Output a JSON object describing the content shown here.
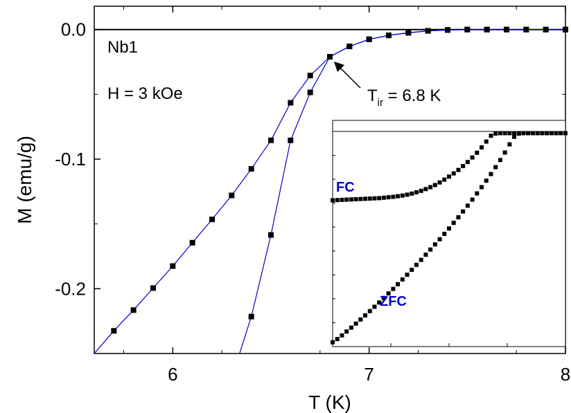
{
  "chart_data": {
    "type": "scatter",
    "title": "",
    "xlabel": "T (K)",
    "ylabel": "M (emu/g)",
    "xlim": [
      5.6,
      8.0
    ],
    "ylim": [
      -0.25,
      0.018
    ],
    "xticks": [
      {
        "value": 6,
        "label": "6"
      },
      {
        "value": 7,
        "label": "7"
      },
      {
        "value": 8,
        "label": "8"
      }
    ],
    "yticks": [
      {
        "value": 0.0,
        "label": "0.0"
      },
      {
        "value": -0.1,
        "label": "-0.1"
      },
      {
        "value": -0.2,
        "label": "-0.2"
      }
    ],
    "grid": false,
    "annotations": {
      "sample": "Nb1",
      "field": "H = 3 kOe",
      "tir_main": "T",
      "tir_sub": "ir",
      "tir_value": " = 6.8 K",
      "arrow_to": {
        "x": 6.8,
        "y": -0.021
      }
    },
    "series": [
      {
        "key": "fc",
        "color": "#0000cc",
        "x": [
          5.6,
          5.7,
          5.8,
          5.9,
          6.0,
          6.1,
          6.2,
          6.3,
          6.4,
          6.5,
          6.6,
          6.7,
          6.8,
          6.9,
          7.0,
          7.1,
          7.2,
          7.3,
          7.4,
          7.5,
          7.6,
          7.7,
          7.8,
          7.9,
          8.0
        ],
        "values": [
          -0.25,
          -0.2325,
          -0.2165,
          -0.1995,
          -0.1825,
          -0.1645,
          -0.1465,
          -0.128,
          -0.1075,
          -0.0855,
          -0.0565,
          -0.0355,
          -0.021,
          -0.013,
          -0.0075,
          -0.0045,
          -0.0025,
          -0.001,
          -0.0003,
          0.0,
          0.0,
          0.0,
          0.0,
          0.0,
          0.0
        ]
      },
      {
        "key": "zfc",
        "color": "#0000cc",
        "x": [
          6.34,
          6.4,
          6.5,
          6.6,
          6.7,
          6.8,
          6.9,
          7.0,
          7.1,
          7.2,
          7.3,
          7.4,
          7.5,
          7.6,
          7.7,
          7.8,
          7.9,
          8.0
        ],
        "values": [
          -0.25,
          -0.2215,
          -0.1585,
          -0.0855,
          -0.0485,
          -0.021,
          -0.013,
          -0.0075,
          -0.0045,
          -0.0025,
          -0.001,
          -0.0003,
          0.0,
          0.0,
          0.0,
          0.0,
          0.0,
          0.0
        ]
      }
    ],
    "inset": {
      "labels": {
        "fc": "FC",
        "zfc": "ZFC"
      },
      "label_color": "#0000cc",
      "x": [
        0.0,
        0.02,
        0.04,
        0.06,
        0.08,
        0.1,
        0.12,
        0.14,
        0.16,
        0.18,
        0.2,
        0.22,
        0.24,
        0.26,
        0.28,
        0.3,
        0.32,
        0.34,
        0.36,
        0.38,
        0.4,
        0.42,
        0.44,
        0.46,
        0.48,
        0.5,
        0.52,
        0.54,
        0.56,
        0.58,
        0.6,
        0.62,
        0.64,
        0.66,
        0.68,
        0.7,
        0.72,
        0.74,
        0.76,
        0.78,
        0.8,
        0.82,
        0.84,
        0.86,
        0.88,
        0.9,
        0.92,
        0.94,
        0.96,
        0.98,
        1.0
      ],
      "fc": [
        0.18,
        0.181,
        0.182,
        0.183,
        0.184,
        0.185,
        0.186,
        0.187,
        0.188,
        0.189,
        0.19,
        0.192,
        0.194,
        0.196,
        0.199,
        0.202,
        0.206,
        0.211,
        0.217,
        0.224,
        0.232,
        0.241,
        0.251,
        0.263,
        0.276,
        0.29,
        0.305,
        0.321,
        0.339,
        0.358,
        0.379,
        0.401,
        0.426,
        0.453,
        0.48,
        0.49,
        0.492,
        0.492,
        0.492,
        0.492,
        0.492,
        0.492,
        0.492,
        0.492,
        0.492,
        0.492,
        0.492,
        0.492,
        0.492,
        0.492,
        0.492
      ],
      "zfc": [
        -0.48,
        -0.465,
        -0.448,
        -0.43,
        -0.412,
        -0.393,
        -0.374,
        -0.355,
        -0.335,
        -0.315,
        -0.295,
        -0.274,
        -0.253,
        -0.232,
        -0.21,
        -0.188,
        -0.166,
        -0.143,
        -0.12,
        -0.097,
        -0.073,
        -0.049,
        -0.025,
        -0.001,
        0.024,
        0.049,
        0.075,
        0.101,
        0.128,
        0.155,
        0.183,
        0.212,
        0.241,
        0.271,
        0.302,
        0.334,
        0.367,
        0.402,
        0.44,
        0.475,
        0.49,
        0.492,
        0.492,
        0.492,
        0.492,
        0.492,
        0.492,
        0.492,
        0.492,
        0.492,
        0.492
      ]
    }
  }
}
